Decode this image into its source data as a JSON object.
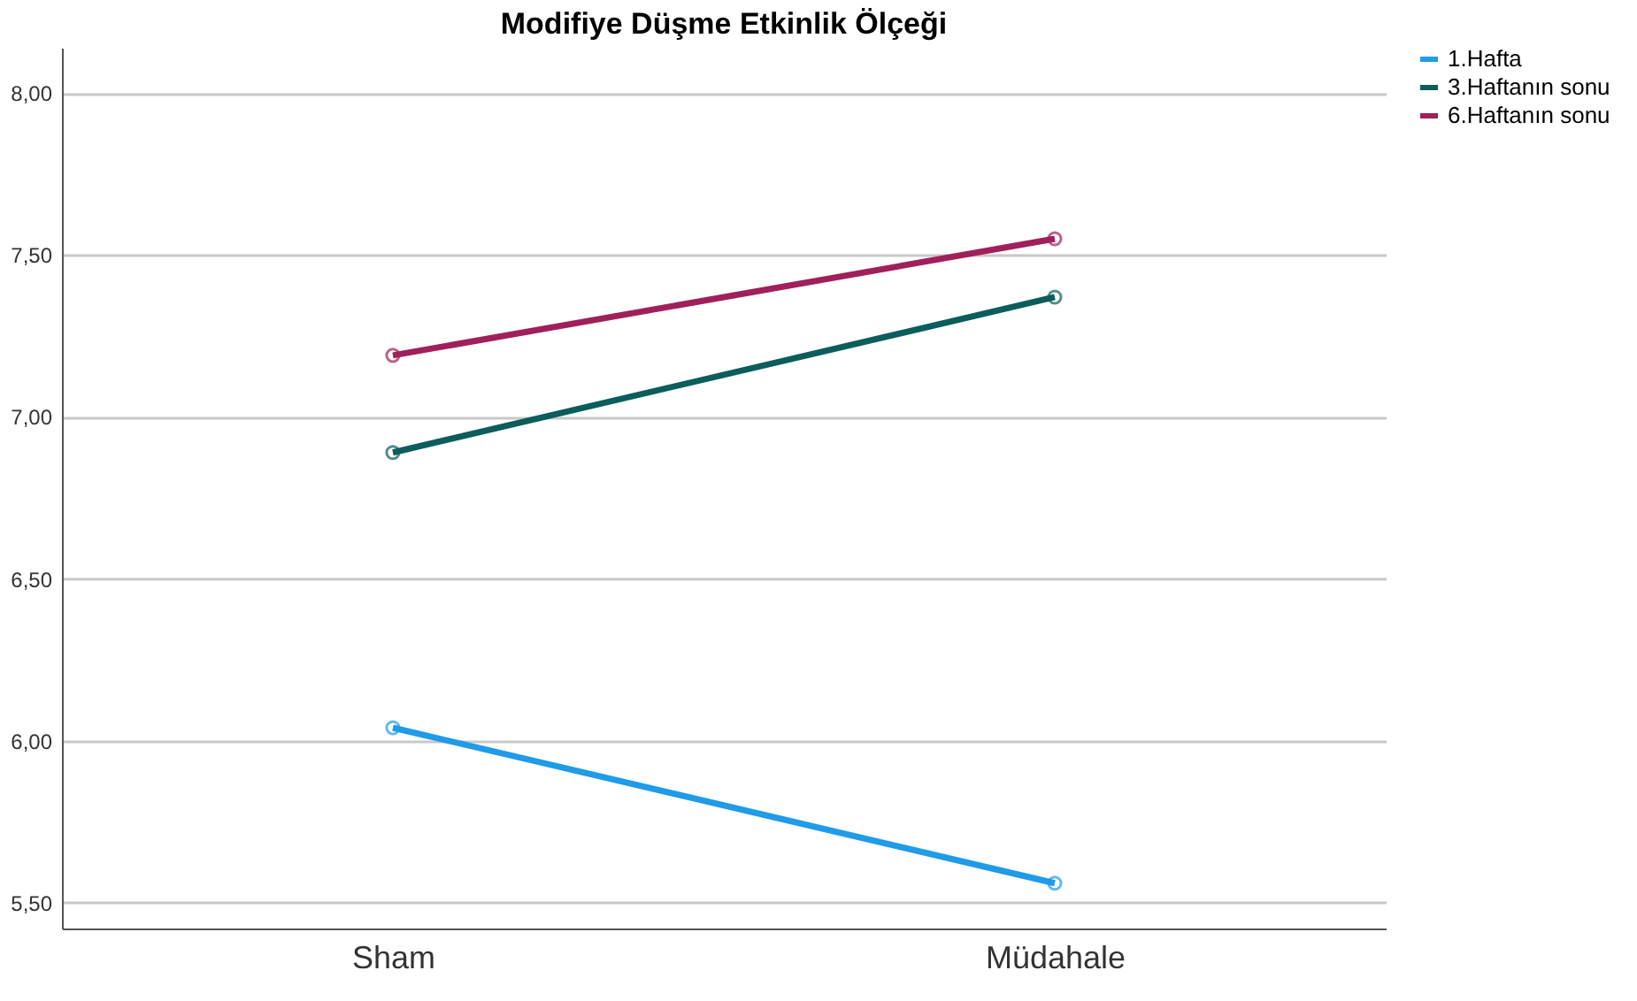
{
  "chart_data": {
    "type": "line",
    "title": "Modifiye Düşme Etkinlik Ölçeği",
    "categories": [
      "Sham",
      "Müdahale"
    ],
    "series": [
      {
        "name": "1.Hafta",
        "color": "#1f9be8",
        "values": [
          6.04,
          5.56
        ]
      },
      {
        "name": "3.Haftanın sonu",
        "color": "#0c5d5b",
        "values": [
          6.89,
          7.37
        ]
      },
      {
        "name": "6.Haftanın sonu",
        "color": "#a0205a",
        "values": [
          7.19,
          7.55
        ]
      }
    ],
    "ylim": [
      5.42,
      8.14
    ],
    "yticks": [
      {
        "value": 5.5,
        "label": "5,50"
      },
      {
        "value": 6.0,
        "label": "6,00"
      },
      {
        "value": 6.5,
        "label": "6,50"
      },
      {
        "value": 7.0,
        "label": "7,00"
      },
      {
        "value": 7.5,
        "label": "7,50"
      },
      {
        "value": 8.0,
        "label": "8,00"
      }
    ],
    "grid": "y",
    "legend": "top right",
    "marker": "circle",
    "line_style": "solid"
  }
}
